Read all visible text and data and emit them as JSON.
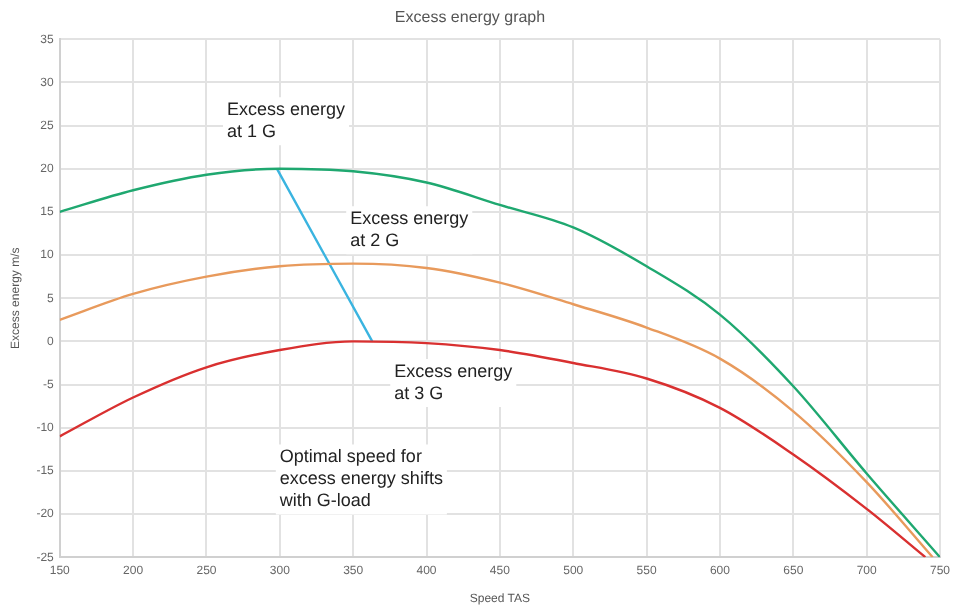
{
  "chart_data": {
    "type": "line",
    "title": "Excess energy graph",
    "xlabel": "Speed TAS",
    "ylabel": "Excess energy m/s",
    "series": [
      {
        "color": "#1fa870",
        "x": [
          150,
          200,
          250,
          300,
          350,
          400,
          450,
          500,
          550,
          600,
          650,
          700,
          750
        ],
        "values": [
          15,
          17.5,
          19.3,
          20,
          19.7,
          18.4,
          15.8,
          13.2,
          8.7,
          3.1,
          -5.2,
          -15.3,
          -25
        ]
      },
      {
        "color": "#e89a5c",
        "x": [
          150,
          200,
          250,
          300,
          350,
          400,
          450,
          500,
          550,
          600,
          650,
          700,
          745
        ],
        "values": [
          2.5,
          5.5,
          7.5,
          8.7,
          9,
          8.5,
          6.8,
          4.3,
          1.6,
          -2,
          -8.1,
          -16.3,
          -25
        ]
      },
      {
        "color": "#d93030",
        "x": [
          150,
          200,
          250,
          300,
          350,
          400,
          450,
          500,
          550,
          600,
          650,
          700,
          740
        ],
        "values": [
          -11,
          -6.5,
          -3,
          -1,
          0,
          -0.2,
          -1,
          -2.5,
          -4.3,
          -7.7,
          -13.1,
          -19.4,
          -25
        ]
      },
      {
        "type": "line",
        "color": "#3ab4e0",
        "x": [
          298,
          363
        ],
        "values": [
          20,
          0
        ]
      }
    ],
    "xlim": [
      150,
      750
    ],
    "xticks": [
      150,
      200,
      250,
      300,
      350,
      400,
      450,
      500,
      550,
      600,
      650,
      700,
      750
    ],
    "ylim": [
      -25,
      35
    ],
    "yticks": [
      -25,
      -20,
      -15,
      -10,
      -5,
      0,
      5,
      10,
      15,
      20,
      25,
      30,
      35
    ],
    "grid": true,
    "legend": false,
    "marker": "none",
    "line_style": "solid",
    "annotations": [
      "Excess energy\nat 1 G",
      "Excess energy\nat 2 G",
      "Excess energy\nat 3 G",
      "Optimal speed for\nexcess energy shifts\nwith G-load"
    ]
  }
}
